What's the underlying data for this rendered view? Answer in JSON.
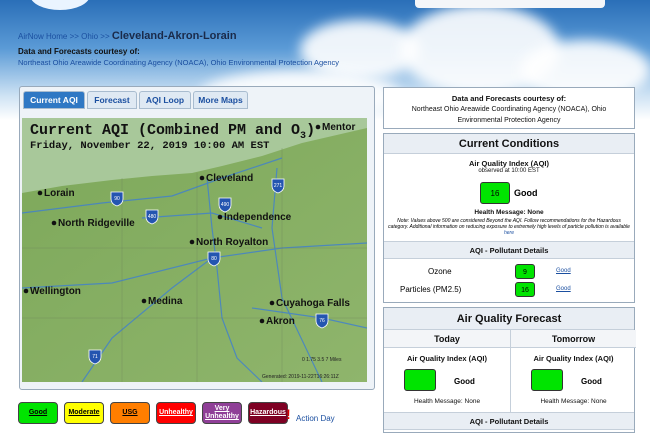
{
  "breadcrumb": {
    "home": "AirNow Home",
    "sep": ">>",
    "state": "Ohio",
    "city": "Cleveland-Akron-Lorain"
  },
  "courtesy": {
    "label": "Data and Forecasts courtesy of:",
    "agency": "Northeast Ohio Areawide Coordinating Agency (NOACA), Ohio Environmental Protection Agency"
  },
  "tabs": [
    "Current AQI",
    "Forecast",
    "AQI Loop",
    "More Maps"
  ],
  "map": {
    "title": "Current AQI (Combined PM and O",
    "title_sub": "3",
    "title_end": ")",
    "date": "Friday, November 22, 2019 10:00 AM EST",
    "cities": [
      "Mentor",
      "Lorain",
      "Cleveland",
      "North Ridgeville",
      "Independence",
      "North Royalton",
      "Wellington",
      "Medina",
      "Cuyahoga Falls",
      "Akron"
    ],
    "highways": [
      "90",
      "271",
      "480",
      "490",
      "80",
      "76",
      "71"
    ],
    "scale": "0 1.75 3.5      7 Miles",
    "generated": "Generated: 2019-11-22T16:26:11Z"
  },
  "legend": [
    "Good",
    "Moderate",
    "USG",
    "Unhealthy",
    "Very Unhealthy",
    "Hazardous"
  ],
  "action_day": "Action Day",
  "right_courtesy": {
    "label": "Data and Forecasts courtesy of:",
    "agency": "Northeast Ohio Areawide Coordinating Agency (NOACA), Ohio Environmental Protection Agency"
  },
  "current": {
    "title": "Current Conditions",
    "aqi_label": "Air Quality Index (AQI)",
    "observed": "observed at 10:00 EST",
    "aqi": "16",
    "category": "Good",
    "health": "Health Message: None",
    "note": "Note: Values above 500 are considered Beyond the AQI. Follow recommendations for the Hazardous category. Additional information on reducing exposure to extremely high levels of particle pollution is available",
    "note_link": "here",
    "details_title": "AQI - Pollutant Details",
    "pollutants": [
      {
        "name": "Ozone",
        "aqi": "9",
        "category": "Good"
      },
      {
        "name": "Particles (PM2.5)",
        "aqi": "16",
        "category": "Good"
      }
    ]
  },
  "forecast": {
    "title": "Air Quality Forecast",
    "days": [
      {
        "day": "Today",
        "aqi_label": "Air Quality Index (AQI)",
        "category": "Good",
        "health": "Health Message: None"
      },
      {
        "day": "Tomorrow",
        "aqi_label": "Air Quality Index (AQI)",
        "category": "Good",
        "health": "Health Message: None"
      }
    ],
    "details_title": "AQI - Pollutant Details"
  }
}
